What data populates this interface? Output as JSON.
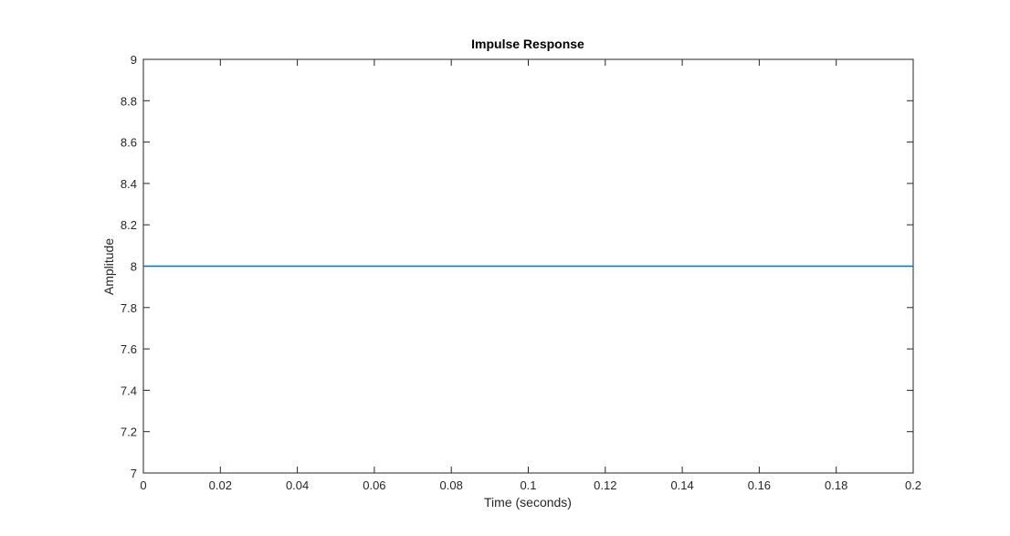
{
  "chart_data": {
    "type": "line",
    "title": "Impulse Response",
    "xlabel": "Time (seconds)",
    "ylabel": "Amplitude",
    "xlim": [
      0,
      0.2
    ],
    "ylim": [
      7,
      9
    ],
    "xticks": [
      0,
      0.02,
      0.04,
      0.06,
      0.08,
      0.1,
      0.12,
      0.14,
      0.16,
      0.18,
      0.2
    ],
    "xtick_labels": [
      "0",
      "0.02",
      "0.04",
      "0.06",
      "0.08",
      "0.1",
      "0.12",
      "0.14",
      "0.16",
      "0.18",
      "0.2"
    ],
    "yticks": [
      7,
      7.2,
      7.4,
      7.6,
      7.8,
      8,
      8.2,
      8.4,
      8.6,
      8.8,
      9
    ],
    "ytick_labels": [
      "7",
      "7.2",
      "7.4",
      "7.6",
      "7.8",
      "8",
      "8.2",
      "8.4",
      "8.6",
      "8.8",
      "9"
    ],
    "grid": false,
    "series": [
      {
        "color": "#0072bd",
        "x": [
          0,
          0.2
        ],
        "y": [
          8,
          8
        ]
      }
    ]
  }
}
